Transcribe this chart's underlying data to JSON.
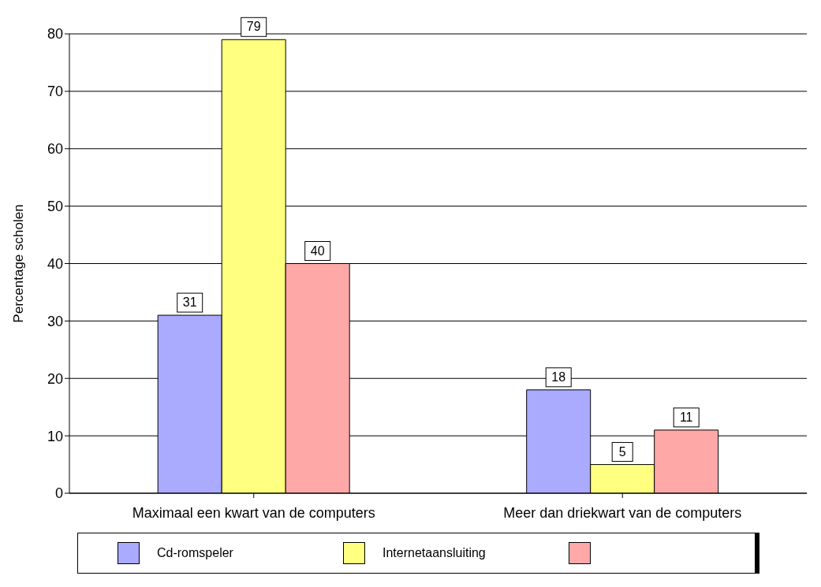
{
  "chart_data": {
    "type": "bar",
    "ylabel": "Percentage scholen",
    "categories": [
      "Maximaal een kwart van de computers",
      "Meer dan driekwart van de computers"
    ],
    "series": [
      {
        "name": "Cd-romspeler",
        "color": "#aaaaff",
        "values": [
          31,
          18
        ]
      },
      {
        "name": "Internetaansluiting",
        "color": "#ffff80",
        "values": [
          79,
          5
        ]
      },
      {
        "color": "#ffa8a8",
        "values": [
          40,
          11
        ]
      }
    ],
    "ylim": [
      0,
      80
    ],
    "yticks": [
      0,
      10,
      20,
      30,
      40,
      50,
      60,
      70,
      80
    ],
    "grid": "y",
    "legend": "bottom",
    "data_labels": true
  }
}
